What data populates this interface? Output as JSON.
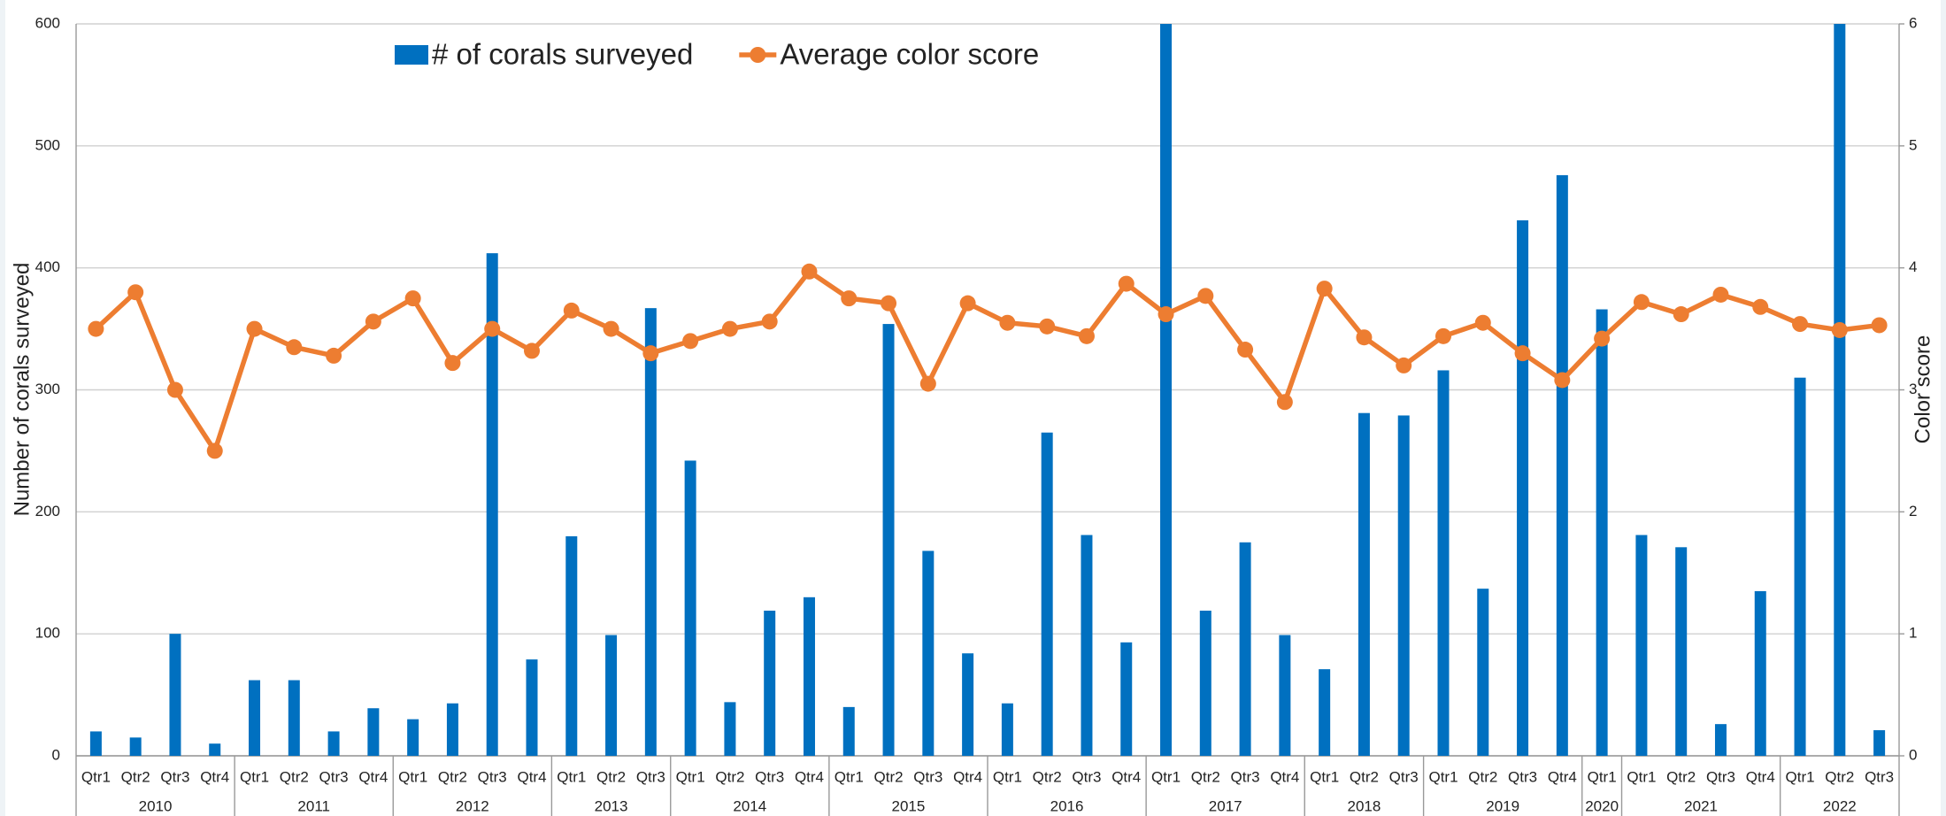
{
  "chart_data": {
    "type": "bar-line",
    "category_groups": [
      {
        "label": "2010",
        "categories": [
          "Qtr1",
          "Qtr2",
          "Qtr3",
          "Qtr4"
        ]
      },
      {
        "label": "2011",
        "categories": [
          "Qtr1",
          "Qtr2",
          "Qtr3",
          "Qtr4"
        ]
      },
      {
        "label": "2012",
        "categories": [
          "Qtr1",
          "Qtr2",
          "Qtr3",
          "Qtr4"
        ]
      },
      {
        "label": "2013",
        "categories": [
          "Qtr1",
          "Qtr2",
          "Qtr3"
        ]
      },
      {
        "label": "2014",
        "categories": [
          "Qtr1",
          "Qtr2",
          "Qtr3",
          "Qtr4"
        ]
      },
      {
        "label": "2015",
        "categories": [
          "Qtr1",
          "Qtr2",
          "Qtr3",
          "Qtr4"
        ]
      },
      {
        "label": "2016",
        "categories": [
          "Qtr1",
          "Qtr2",
          "Qtr3",
          "Qtr4"
        ]
      },
      {
        "label": "2017",
        "categories": [
          "Qtr1",
          "Qtr2",
          "Qtr3",
          "Qtr4"
        ]
      },
      {
        "label": "2018",
        "categories": [
          "Qtr1",
          "Qtr2",
          "Qtr3"
        ]
      },
      {
        "label": "2019",
        "categories": [
          "Qtr1",
          "Qtr2",
          "Qtr3",
          "Qtr4"
        ]
      },
      {
        "label": "2020",
        "categories": [
          "Qtr1"
        ]
      },
      {
        "label": "2021",
        "categories": [
          "Qtr1",
          "Qtr2",
          "Qtr3",
          "Qtr4"
        ]
      },
      {
        "label": "2022",
        "categories": [
          "Qtr1",
          "Qtr2",
          "Qtr3"
        ]
      }
    ],
    "series": [
      {
        "name": "# of corals surveyed",
        "type": "bar",
        "color": "#0070c0",
        "axis": "y",
        "values": [
          20,
          15,
          100,
          10,
          62,
          62,
          20,
          39,
          30,
          43,
          412,
          79,
          180,
          99,
          367,
          242,
          44,
          119,
          130,
          40,
          354,
          168,
          84,
          43,
          265,
          181,
          93,
          600,
          119,
          175,
          99,
          71,
          281,
          279,
          316,
          137,
          439,
          476,
          366,
          181,
          171,
          26,
          135,
          310,
          600,
          21
        ]
      },
      {
        "name": "Average color score",
        "type": "line",
        "color": "#ed7d31",
        "axis": "y2",
        "values": [
          3.5,
          3.8,
          3.0,
          2.5,
          3.5,
          3.35,
          3.28,
          3.56,
          3.75,
          3.22,
          3.5,
          3.32,
          3.65,
          3.5,
          3.3,
          3.4,
          3.5,
          3.56,
          3.97,
          3.75,
          3.71,
          3.05,
          3.71,
          3.55,
          3.52,
          3.44,
          3.87,
          3.62,
          3.77,
          3.33,
          2.9,
          3.83,
          3.43,
          3.2,
          3.44,
          3.55,
          3.3,
          3.08,
          3.42,
          3.72,
          3.62,
          3.78,
          3.68,
          3.54,
          3.49,
          3.53
        ]
      }
    ],
    "y_label": "Number of corals surveyed",
    "y2_label": "Color score",
    "ylim": [
      0,
      600
    ],
    "yticks": [
      0,
      100,
      200,
      300,
      400,
      500,
      600
    ],
    "y2lim": [
      0,
      6
    ],
    "y2ticks": [
      0,
      1,
      2,
      3,
      4,
      5,
      6
    ],
    "grid": true,
    "legend": "top"
  }
}
